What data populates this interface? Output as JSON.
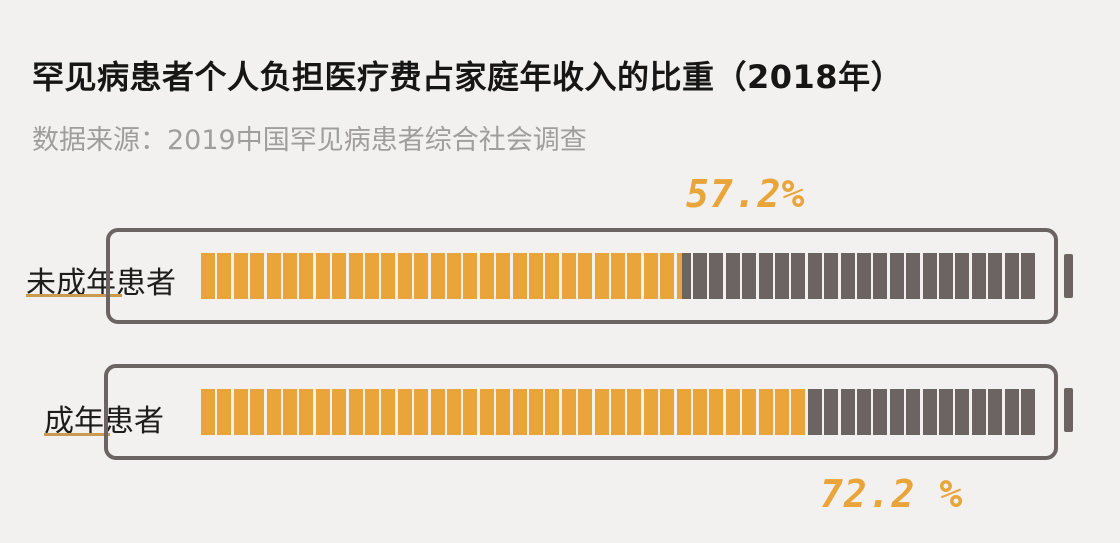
{
  "title": "罕见病患者个人负担医疗费占家庭年收入的比重（2018年）",
  "subtitle": "数据来源：2019中国罕见病患者综合社会调查",
  "colors": {
    "filled": "#e9a43a",
    "empty": "#6b6462",
    "outline": "#6b6462",
    "background": "#f2f1ef"
  },
  "chart_data": {
    "type": "bar",
    "categories": [
      "未成年患者",
      "成年患者"
    ],
    "values": [
      57.2,
      72.2
    ],
    "value_labels": [
      "57.2%",
      "72.2 %"
    ],
    "unit": "%",
    "ylim": [
      0,
      100
    ],
    "title": "罕见病患者个人负担医疗费占家庭年收入的比重（2018年）",
    "subtitle": "数据来源：2019中国罕见病患者综合社会调查"
  }
}
